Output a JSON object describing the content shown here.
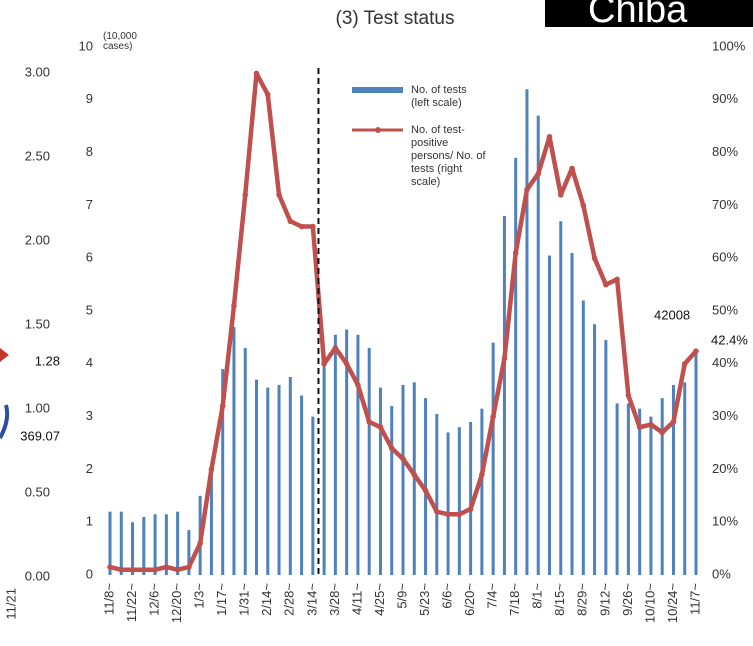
{
  "chart_data": {
    "type": "bar-line",
    "title": "(3) Test status",
    "badge": "Chiba",
    "y_axis_top": "10",
    "y_axis_unit": "(10,000 cases)",
    "categories": [
      "11/8~",
      null,
      "11/22~",
      null,
      "12/6~",
      null,
      "12/20~",
      null,
      "1/3~",
      null,
      "1/17~",
      null,
      "1/31~",
      null,
      "2/14~",
      null,
      "2/28~",
      null,
      "3/14~",
      null,
      "3/28~",
      null,
      "4/11~",
      null,
      "4/25~",
      null,
      "5/9~",
      null,
      "5/23~",
      null,
      "6/6~",
      null,
      "6/20~",
      null,
      "7/4~",
      null,
      "7/18~",
      null,
      "8/1~",
      null,
      "8/15~",
      null,
      "8/29~",
      null,
      "9/12~",
      null,
      "9/26~",
      null,
      "10/10~",
      null,
      "10/24~",
      null,
      "11/7~"
    ],
    "series": [
      {
        "name": "No. of tests (left scale)",
        "type": "bar",
        "color": "#4f81bd",
        "axis": "y",
        "values": [
          1.2,
          1.2,
          1.0,
          1.1,
          1.15,
          1.15,
          1.2,
          0.85,
          1.5,
          2.0,
          3.9,
          4.7,
          4.3,
          3.7,
          3.55,
          3.6,
          3.75,
          3.4,
          3.0,
          4.2,
          4.55,
          4.65,
          4.55,
          4.3,
          3.55,
          3.2,
          3.6,
          3.65,
          3.35,
          3.05,
          2.7,
          2.8,
          2.9,
          3.15,
          4.4,
          6.8,
          7.9,
          9.2,
          8.7,
          6.05,
          6.7,
          6.1,
          5.2,
          4.75,
          4.45,
          3.25,
          3.25,
          3.15,
          3.0,
          3.35,
          3.6,
          3.65,
          4.2
        ]
      },
      {
        "name": "No. of test-positive persons/ No. of tests (right scale)",
        "type": "line",
        "color": "#c0504d",
        "axis": "y2",
        "values": [
          1.5,
          1,
          1,
          1,
          1,
          1.5,
          1,
          1.5,
          6,
          20,
          32,
          51,
          72,
          95,
          91,
          72,
          67,
          66,
          66,
          40,
          43,
          40,
          36,
          29,
          28,
          24,
          22,
          19,
          16,
          12,
          11.5,
          11.5,
          12.5,
          19,
          30,
          41,
          61,
          73,
          76,
          83,
          72,
          77,
          70,
          60,
          55,
          56,
          34,
          28,
          28.5,
          27,
          29,
          40,
          42.4
        ]
      }
    ],
    "ylim": [
      0,
      10
    ],
    "yticks": [
      0,
      1,
      2,
      3,
      4,
      5,
      6,
      7,
      8,
      9
    ],
    "y2lim": [
      0,
      100
    ],
    "y2ticks": [
      {
        "value": 0,
        "label": "0%"
      },
      {
        "value": 10,
        "label": "10%"
      },
      {
        "value": 20,
        "label": "20%"
      },
      {
        "value": 30,
        "label": "30%"
      },
      {
        "value": 40,
        "label": "40%"
      },
      {
        "value": 50,
        "label": "50%"
      },
      {
        "value": 60,
        "label": "60%"
      },
      {
        "value": 70,
        "label": "70%"
      },
      {
        "value": 80,
        "label": "80%"
      },
      {
        "value": 90,
        "label": "90%"
      },
      {
        "value": 100,
        "label": "100%"
      }
    ],
    "annotations": [
      "42008",
      "42.4%"
    ],
    "divider_after_category": 18
  },
  "left_fragment": {
    "ticks": [
      "3.00",
      "2.50",
      "2.00",
      "1.50",
      "1.00",
      "0.50",
      "0.00"
    ],
    "labels": [
      "1.28",
      "369.07"
    ],
    "x_label": "11/21"
  }
}
